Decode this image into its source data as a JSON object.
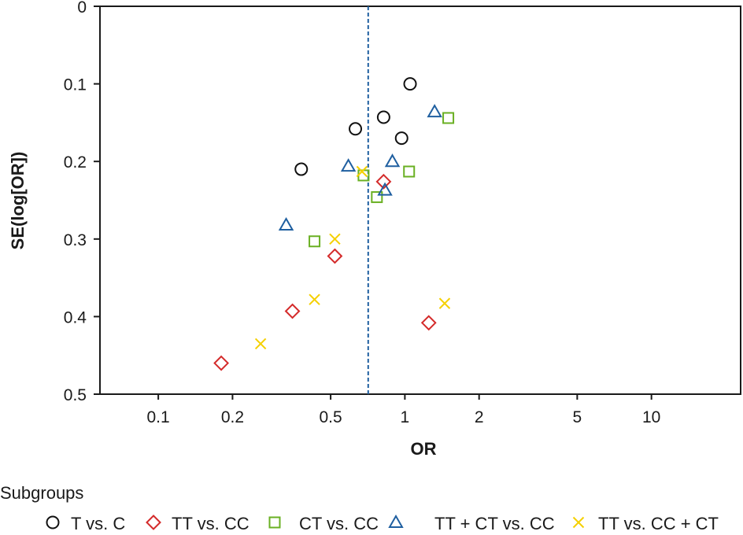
{
  "chart_data": {
    "type": "scatter",
    "xlabel": "OR",
    "ylabel": "SE(log[OR])",
    "x_scale": "log",
    "xlim": [
      0.058,
      23
    ],
    "ylim": [
      0,
      0.5
    ],
    "y_inverted": true,
    "x_ticks": [
      0.1,
      0.2,
      0.5,
      1,
      2,
      5,
      10
    ],
    "x_tick_labels": [
      "0.1",
      "0.2",
      "0.5",
      "1",
      "2",
      "5",
      "10"
    ],
    "y_ticks": [
      0,
      0.1,
      0.2,
      0.3,
      0.4,
      0.5
    ],
    "y_tick_labels": [
      "0",
      "0.1",
      "0.2",
      "0.3",
      "0.4",
      "0.5"
    ],
    "reference_line": {
      "x": 0.71,
      "style": "dashed",
      "color": "#1f5fa0"
    },
    "legend_title": "Subgroups",
    "legend_position": "bottom",
    "series": [
      {
        "name": "T vs. C",
        "marker": "circle",
        "color": "#111111",
        "points": [
          [
            0.38,
            0.21
          ],
          [
            0.63,
            0.158
          ],
          [
            0.82,
            0.143
          ],
          [
            1.05,
            0.1
          ],
          [
            0.97,
            0.17
          ]
        ]
      },
      {
        "name": "TT vs. CC",
        "marker": "diamond",
        "color": "#d42a2a",
        "points": [
          [
            0.18,
            0.46
          ],
          [
            0.35,
            0.393
          ],
          [
            0.52,
            0.322
          ],
          [
            0.82,
            0.226
          ],
          [
            1.25,
            0.408
          ]
        ]
      },
      {
        "name": "CT vs. CC",
        "marker": "square",
        "color": "#6ab023",
        "points": [
          [
            0.43,
            0.303
          ],
          [
            0.68,
            0.218
          ],
          [
            0.77,
            0.246
          ],
          [
            1.04,
            0.213
          ],
          [
            1.5,
            0.144
          ]
        ]
      },
      {
        "name": "TT + CT vs. CC",
        "marker": "triangle",
        "color": "#1f5fa0",
        "points": [
          [
            0.33,
            0.282
          ],
          [
            0.59,
            0.206
          ],
          [
            0.83,
            0.237
          ],
          [
            0.89,
            0.2
          ],
          [
            1.32,
            0.136
          ]
        ]
      },
      {
        "name": "TT vs. CC + CT",
        "marker": "x",
        "color": "#f5d000",
        "points": [
          [
            0.26,
            0.435
          ],
          [
            0.43,
            0.378
          ],
          [
            0.52,
            0.3
          ],
          [
            0.67,
            0.213
          ],
          [
            1.45,
            0.383
          ]
        ]
      }
    ]
  }
}
